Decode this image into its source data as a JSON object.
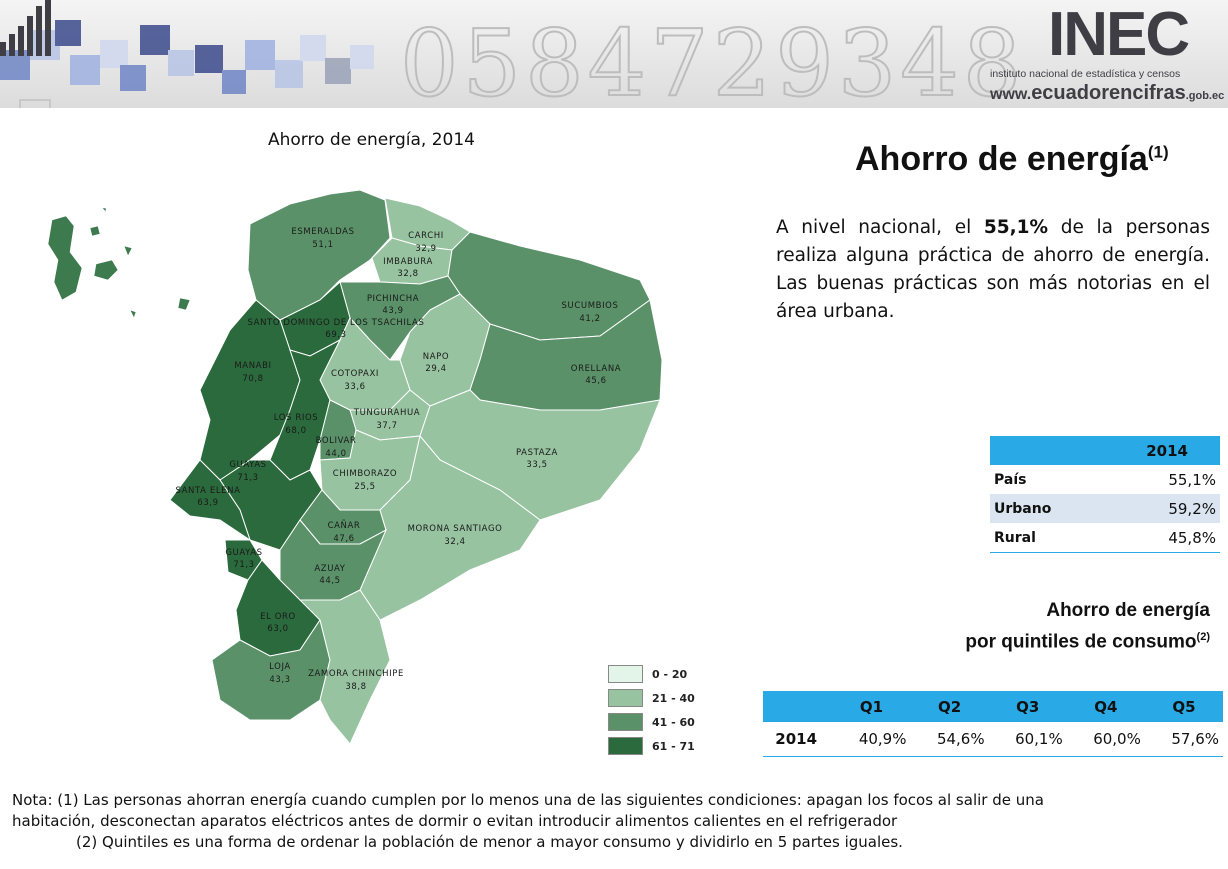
{
  "header": {
    "logo_text": "INEC",
    "logo_subtitle": "instituto nacional de estadística y censos",
    "web_prefix": "www.",
    "web_main": "ecuadorencifras",
    "web_suffix": ".gob.ec",
    "banner_digits": "0584729348"
  },
  "map": {
    "title": "Ahorro de energía, 2014",
    "colors": {
      "c0_20": "#e3f4e8",
      "c21_40": "#97c3a0",
      "c41_60": "#5a9169",
      "c61_71": "#2a6a3c"
    },
    "provinces": [
      {
        "name": "ESMERALDAS",
        "value": "51,1"
      },
      {
        "name": "CARCHI",
        "value": "32,9"
      },
      {
        "name": "IMBABURA",
        "value": "32,8"
      },
      {
        "name": "PICHINCHA",
        "value": "43,9"
      },
      {
        "name": "SUCUMBIOS",
        "value": "41,2"
      },
      {
        "name": "SANTO DOMINGO DE LOS TSACHILAS",
        "value": "69,3"
      },
      {
        "name": "MANABI",
        "value": "70,8"
      },
      {
        "name": "NAPO",
        "value": "29,4"
      },
      {
        "name": "ORELLANA",
        "value": "45,6"
      },
      {
        "name": "COTOPAXI",
        "value": "33,6"
      },
      {
        "name": "LOS RIOS",
        "value": "68,0"
      },
      {
        "name": "TUNGURAHUA",
        "value": "37,7"
      },
      {
        "name": "BOLIVAR",
        "value": "44,0"
      },
      {
        "name": "PASTAZA",
        "value": "33,5"
      },
      {
        "name": "GUAYAS",
        "value": "71,3"
      },
      {
        "name": "CHIMBORAZO",
        "value": "25,5"
      },
      {
        "name": "SANTA ELENA",
        "value": "63,9"
      },
      {
        "name": "CAÑAR",
        "value": "47,6"
      },
      {
        "name": "MORONA SANTIAGO",
        "value": "32,4"
      },
      {
        "name": "GUAYAS",
        "value": "71,3"
      },
      {
        "name": "AZUAY",
        "value": "44,5"
      },
      {
        "name": "EL ORO",
        "value": "63,0"
      },
      {
        "name": "LOJA",
        "value": "43,3"
      },
      {
        "name": "ZAMORA CHINCHIPE",
        "value": "38,8"
      }
    ],
    "legend": [
      {
        "label": "0 - 20",
        "color": "#e3f4e8"
      },
      {
        "label": "21 - 40",
        "color": "#97c3a0"
      },
      {
        "label": "41 - 60",
        "color": "#5a9169"
      },
      {
        "label": "61 - 71",
        "color": "#2a6a3c"
      }
    ]
  },
  "main_title": "Ahorro de energía",
  "main_title_sup": "(1)",
  "body_text_pre": "A nivel nacional, el ",
  "body_text_bold": "55,1%",
  "body_text_post": " de la personas realiza alguna práctica de ahorro de energía. Las buenas prácticas son más notorias en el área urbana.",
  "area_table": {
    "header": "2014",
    "rows": [
      {
        "label": "País",
        "value": "55,1%"
      },
      {
        "label": "Urbano",
        "value": "59,2%"
      },
      {
        "label": "Rural",
        "value": "45,8%"
      }
    ]
  },
  "quintile_title_line1": "Ahorro de energía",
  "quintile_title_line2": "por quintiles de consumo",
  "quintile_title_sup": "(2)",
  "quintile_table": {
    "headers": [
      "Q1",
      "Q2",
      "Q3",
      "Q4",
      "Q5"
    ],
    "row_label": "2014",
    "values": [
      "40,9%",
      "54,6%",
      "60,1%",
      "60,0%",
      "57,6%"
    ]
  },
  "note1": "Nota: (1) Las personas ahorran energía cuando cumplen por lo menos una de las siguientes condiciones: apagan los focos al salir de una habitación, desconectan aparatos eléctricos antes de dormir o evitan introducir alimentos calientes en el refrigerador",
  "note2": "(2) Quintiles es una forma de ordenar la población de menor a mayor consumo y dividirlo en 5 partes iguales."
}
